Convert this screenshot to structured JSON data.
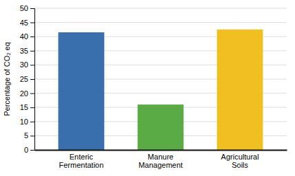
{
  "chart_data": {
    "type": "bar",
    "categories": [
      "Enteric\nFermentation",
      "Manure\nManagement",
      "Agricultural\nSoils"
    ],
    "values": [
      41.5,
      16.0,
      42.5
    ],
    "colors": [
      "#3a6fad",
      "#5aaa46",
      "#f0c020"
    ],
    "ylabel": "Percentage of CO₂ eq",
    "ylim": [
      0,
      50
    ],
    "yticks": [
      0,
      5,
      10,
      15,
      20,
      25,
      30,
      35,
      40,
      45,
      50
    ],
    "grid": true
  }
}
